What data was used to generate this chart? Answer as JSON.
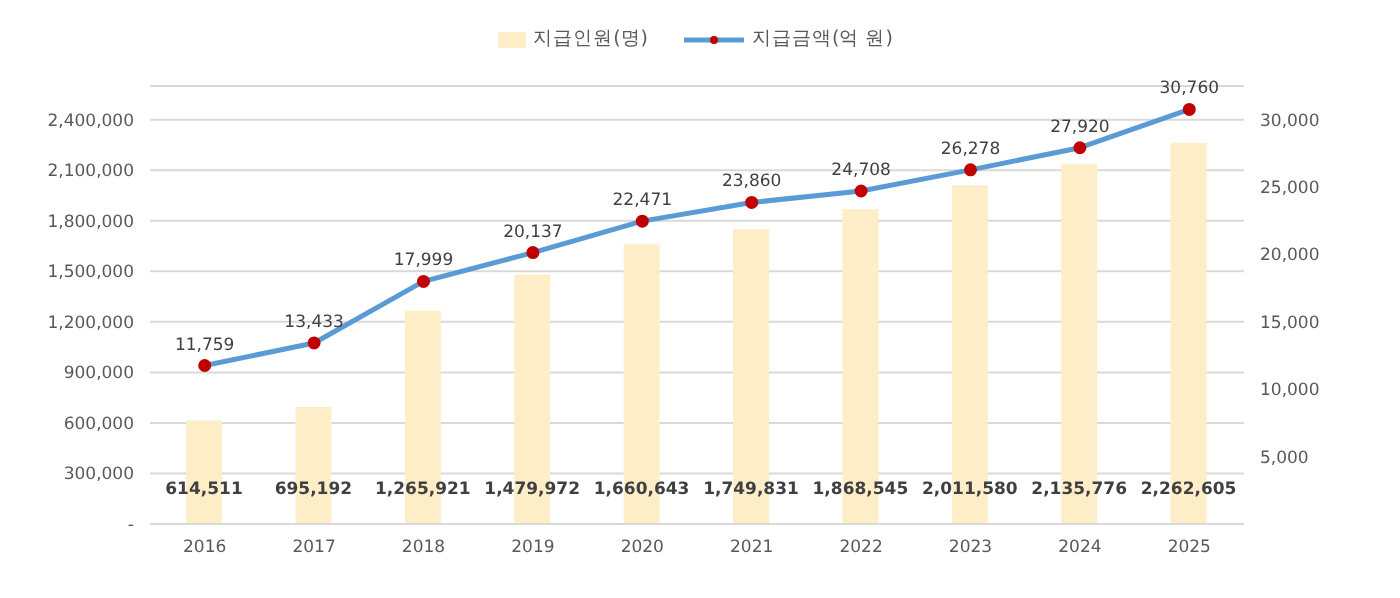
{
  "chart_data": {
    "type": "bar",
    "categories": [
      "2016",
      "2017",
      "2018",
      "2019",
      "2020",
      "2021",
      "2022",
      "2023",
      "2024",
      "2025"
    ],
    "series": [
      {
        "name": "지급인원(명)",
        "color": "#fdeec8",
        "values": [
          614511,
          695192,
          1265921,
          1479972,
          1660643,
          1749831,
          1868545,
          2011580,
          2135776,
          2262605
        ],
        "value_labels": [
          "614,511",
          "695,192",
          "1,265,921",
          "1,479,972",
          "1,660,643",
          "1,749,831",
          "1,868,545",
          "2,011,580",
          "2,135,776",
          "2,262,605"
        ]
      },
      {
        "name": "지급금액(억 원)",
        "type": "line",
        "axis": "y2",
        "color": "#5b9bd5",
        "marker": "circle",
        "values": [
          11759,
          13433,
          17999,
          20137,
          22471,
          23860,
          24708,
          26278,
          27920,
          30760
        ],
        "value_labels": [
          "11,759",
          "13,433",
          "17,999",
          "20,137",
          "22,471",
          "23,860",
          "24,708",
          "26,278",
          "27,920",
          "30,760"
        ]
      }
    ],
    "ylim": [
      0,
      2600000
    ],
    "yticks": [
      {
        "value": 0,
        "label": "-"
      },
      {
        "value": 300000,
        "label": "300,000"
      },
      {
        "value": 600000,
        "label": "600,000"
      },
      {
        "value": 900000,
        "label": "900,000"
      },
      {
        "value": 1200000,
        "label": "1,200,000"
      },
      {
        "value": 1500000,
        "label": "1,500,000"
      },
      {
        "value": 1800000,
        "label": "1,800,000"
      },
      {
        "value": 2100000,
        "label": "2,100,000"
      },
      {
        "value": 2400000,
        "label": "2,400,000"
      }
    ],
    "y2lim": [
      0,
      32500
    ],
    "y2ticks": [
      {
        "value": 5000,
        "label": "5,000"
      },
      {
        "value": 10000,
        "label": "10,000"
      },
      {
        "value": 15000,
        "label": "15,000"
      },
      {
        "value": 20000,
        "label": "20,000"
      },
      {
        "value": 25000,
        "label": "25,000"
      },
      {
        "value": 30000,
        "label": "30,000"
      }
    ],
    "grid": "y",
    "legend": "top"
  }
}
